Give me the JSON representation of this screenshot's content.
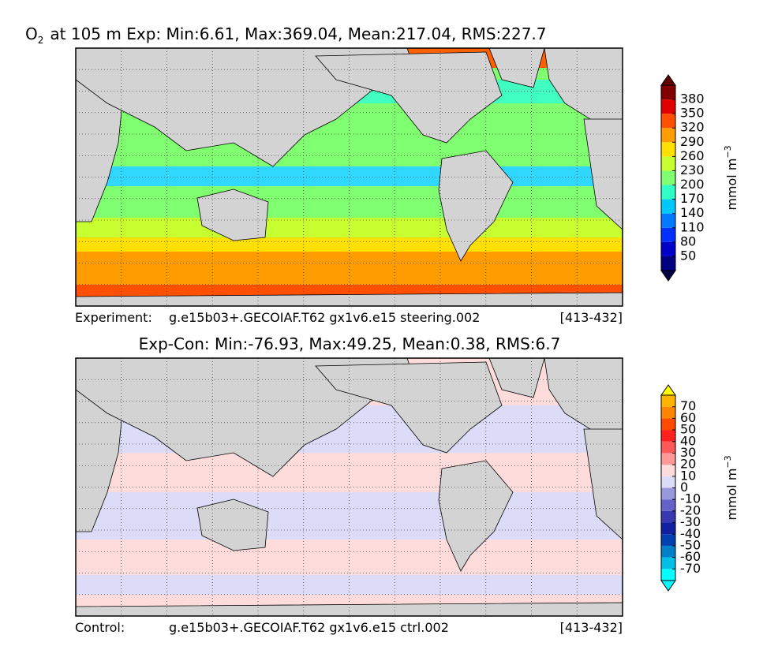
{
  "panels": [
    {
      "title": {
        "symbol": "O",
        "subscript": "2",
        "text": "at 105 m Exp: Min:6.61, Max:369.04, Mean:217.04, RMS:227.7"
      },
      "colorbar": {
        "ticks": [
          50,
          80,
          110,
          140,
          170,
          200,
          230,
          260,
          290,
          320,
          350,
          380
        ],
        "colors": [
          "#000080",
          "#0000c8",
          "#0030ff",
          "#0078ff",
          "#00c8ff",
          "#30ffc8",
          "#80ff70",
          "#c8ff30",
          "#ffe000",
          "#ff9c00",
          "#ff5000",
          "#e00000",
          "#800000"
        ],
        "under": "#000040",
        "over": "#600000",
        "unit": {
          "text": "mmol m",
          "superscript": "−3"
        }
      },
      "footer": {
        "label": "Experiment:",
        "case": "g.e15b03+.GECOIAF.T62 gx1v6.e15 steering.002",
        "years": "[413-432]"
      }
    },
    {
      "title": {
        "text": "Exp-Con: Min:-76.93, Max:49.25, Mean:0.38, RMS:6.7"
      },
      "colorbar": {
        "ticks": [
          -70,
          -60,
          -50,
          -40,
          -30,
          -20,
          -10,
          0,
          10,
          20,
          30,
          40,
          50,
          60,
          70
        ],
        "colors": [
          "#00ffff",
          "#00c0e8",
          "#0080c8",
          "#0040b0",
          "#1020a0",
          "#3838b0",
          "#6464c8",
          "#9898dc",
          "#dcdcf8",
          "#ffdcdc",
          "#ff9898",
          "#ff5858",
          "#ff2020",
          "#ff4800",
          "#ff8400",
          "#ffb400"
        ],
        "under": "#00ffff",
        "over": "#ffff00",
        "unit": {
          "text": "mmol m",
          "superscript": "−3"
        }
      },
      "footer": {
        "label": "Control:",
        "case": "g.e15b03+.GECOIAF.T62 gx1v6.e15 ctrl.002",
        "years": "[413-432]"
      }
    }
  ]
}
